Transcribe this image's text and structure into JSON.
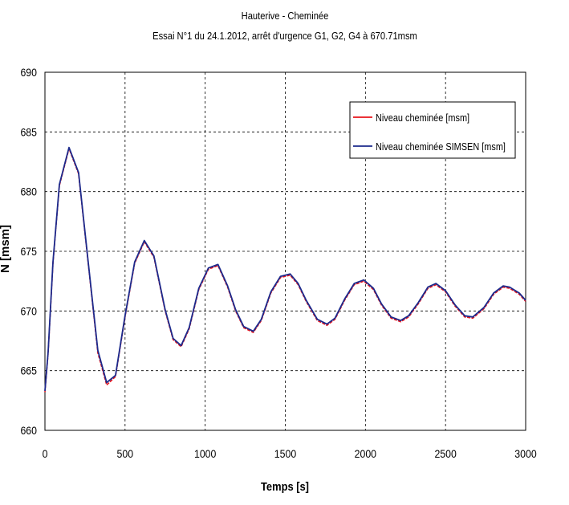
{
  "chart_data": {
    "type": "line",
    "title": "Hauterive - Cheminée",
    "subtitle": "Essai N°1 du 24.1.2012, arrêt d'urgence G1, G2, G4 à 670.71msm",
    "xlabel": "Temps  [s]",
    "ylabel": "N [msm]",
    "xlim": [
      0,
      3000
    ],
    "ylim": [
      660,
      690
    ],
    "xticks": [
      "0",
      "500",
      "1000",
      "1500",
      "2000",
      "2500",
      "3000"
    ],
    "yticks": [
      "660",
      "665",
      "670",
      "675",
      "680",
      "685",
      "690"
    ],
    "grid": true,
    "grid_style": "dashed",
    "legend_position": "top-right",
    "series": [
      {
        "name": "Niveau cheminée [msm]",
        "color": "#e8141c",
        "x": [
          0,
          20,
          50,
          90,
          150,
          210,
          270,
          330,
          385,
          440,
          500,
          560,
          620,
          680,
          750,
          800,
          850,
          900,
          960,
          1020,
          1080,
          1140,
          1190,
          1240,
          1300,
          1350,
          1410,
          1470,
          1530,
          1580,
          1630,
          1700,
          1760,
          1810,
          1870,
          1930,
          1990,
          2050,
          2100,
          2160,
          2220,
          2270,
          2330,
          2390,
          2440,
          2500,
          2560,
          2620,
          2670,
          2740,
          2800,
          2860,
          2900,
          2960,
          3000
        ],
        "y": [
          663.2,
          666.5,
          674.0,
          680.5,
          683.6,
          681.5,
          674.0,
          666.5,
          663.8,
          664.5,
          669.5,
          674.0,
          675.8,
          674.5,
          670.0,
          667.6,
          667.0,
          668.5,
          671.8,
          673.5,
          673.8,
          672.0,
          670.0,
          668.6,
          668.2,
          669.2,
          671.5,
          672.8,
          673.0,
          672.2,
          670.8,
          669.2,
          668.8,
          669.3,
          670.9,
          672.2,
          672.5,
          671.8,
          670.5,
          669.4,
          669.1,
          669.5,
          670.6,
          671.9,
          672.2,
          671.6,
          670.4,
          669.5,
          669.4,
          670.2,
          671.4,
          672.0,
          671.9,
          671.4,
          670.8
        ]
      },
      {
        "name": "Niveau cheminée SIMSEN [msm]",
        "color": "#1c2a8c",
        "x": [
          0,
          20,
          50,
          90,
          150,
          210,
          270,
          330,
          385,
          440,
          500,
          560,
          620,
          680,
          750,
          800,
          850,
          900,
          960,
          1020,
          1080,
          1140,
          1190,
          1240,
          1300,
          1350,
          1410,
          1470,
          1530,
          1580,
          1630,
          1700,
          1760,
          1810,
          1870,
          1930,
          1990,
          2050,
          2100,
          2160,
          2220,
          2270,
          2330,
          2390,
          2440,
          2500,
          2560,
          2620,
          2670,
          2740,
          2800,
          2860,
          2900,
          2960,
          3000
        ],
        "y": [
          663.3,
          666.6,
          674.1,
          680.6,
          683.7,
          681.6,
          674.1,
          666.7,
          664.0,
          664.6,
          669.6,
          674.1,
          675.9,
          674.6,
          670.1,
          667.7,
          667.1,
          668.6,
          671.9,
          673.6,
          673.9,
          672.1,
          670.1,
          668.7,
          668.3,
          669.3,
          671.6,
          672.9,
          673.1,
          672.3,
          670.9,
          669.3,
          668.9,
          669.4,
          671.0,
          672.3,
          672.6,
          671.9,
          670.6,
          669.5,
          669.2,
          669.6,
          670.7,
          672.0,
          672.3,
          671.7,
          670.5,
          669.6,
          669.5,
          670.3,
          671.5,
          672.1,
          672.0,
          671.5,
          670.9
        ]
      }
    ]
  }
}
